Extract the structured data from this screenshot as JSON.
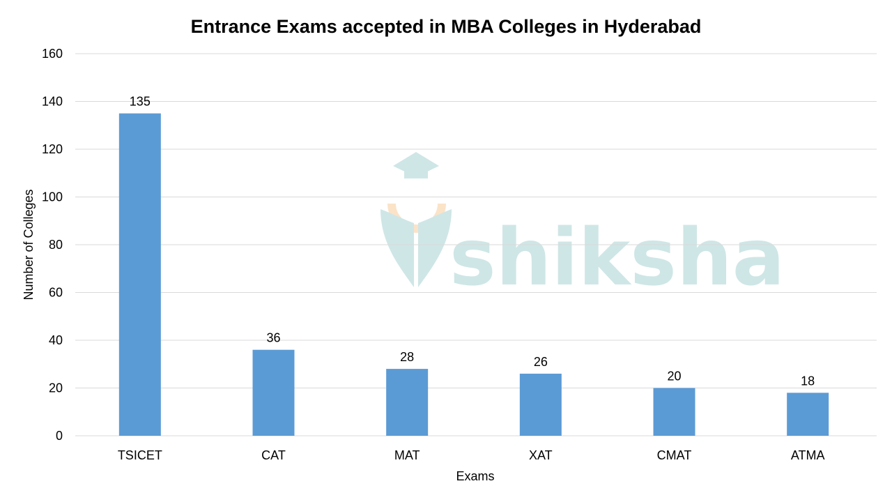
{
  "chart_data": {
    "type": "bar",
    "title": "Entrance Exams accepted in MBA Colleges in Hyderabad",
    "xlabel": "Exams",
    "ylabel": "Number of Colleges",
    "categories": [
      "TSICET",
      "CAT",
      "MAT",
      "XAT",
      "CMAT",
      "ATMA"
    ],
    "values": [
      135,
      36,
      28,
      26,
      20,
      18
    ],
    "ylim": [
      0,
      160
    ],
    "yticks": [
      0,
      20,
      40,
      60,
      80,
      100,
      120,
      140,
      160
    ],
    "grid": true,
    "legend": "none",
    "bar_color": "#5b9bd5",
    "grid_color": "#d9d9d9"
  },
  "watermark": {
    "text": "shiksha",
    "icon": "graduation-cap-pen-icon",
    "color": "#cfe6e6",
    "accent_color": "#fbe3c8"
  }
}
